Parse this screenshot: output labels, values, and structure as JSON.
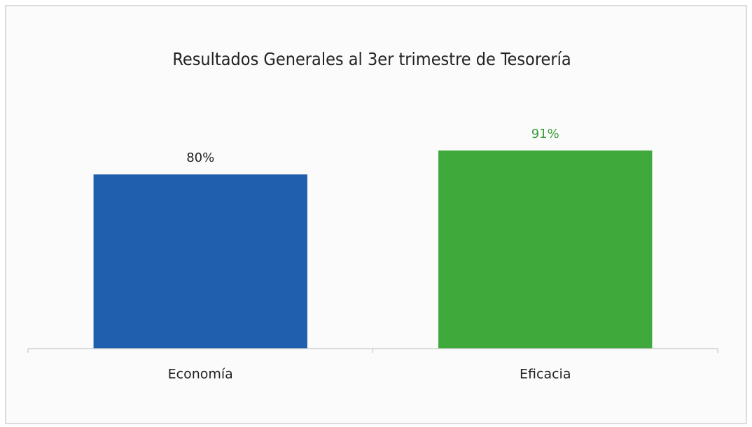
{
  "chart_data": {
    "type": "bar",
    "title": "Resultados Generales al 3er trimestre de Tesorería",
    "categories": [
      "Economía",
      "Eficacia"
    ],
    "values": [
      80,
      91
    ],
    "value_labels": [
      "80%",
      "91%"
    ],
    "colors": [
      "#1f5fad",
      "#40a93c"
    ],
    "label_colors": [
      "#1f1f1f",
      "#3a9a36"
    ],
    "ylim": [
      0,
      100
    ]
  }
}
